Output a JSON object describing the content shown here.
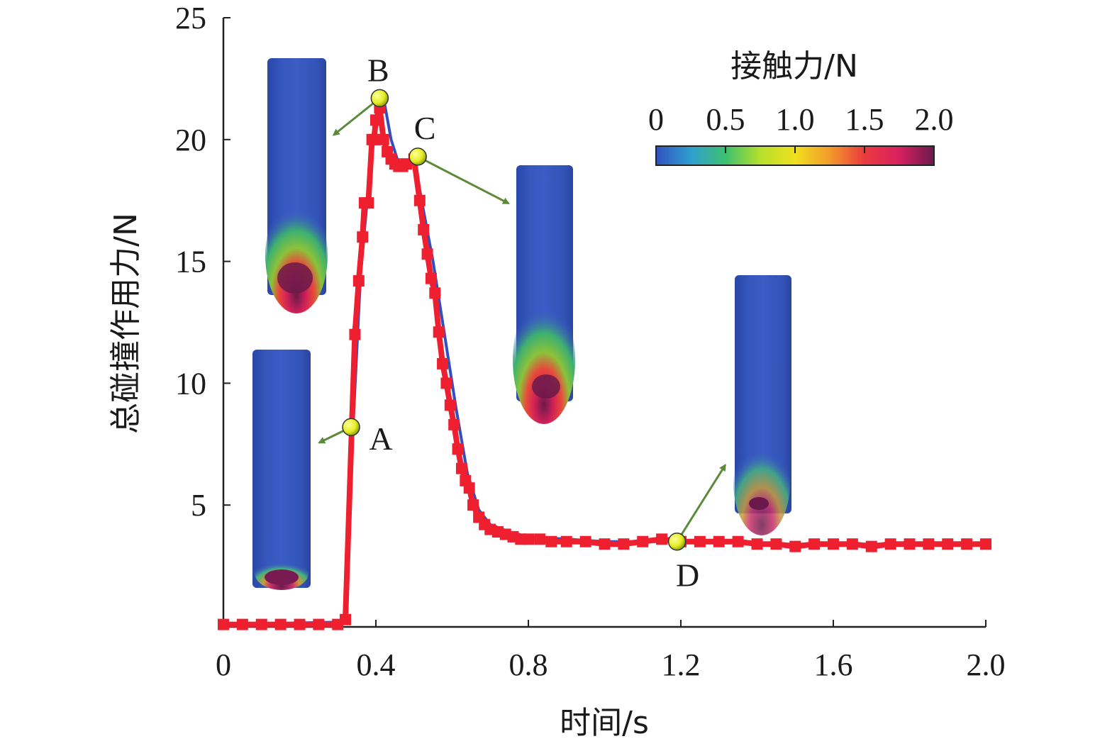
{
  "chart_data": {
    "type": "line",
    "xlabel": "时间/s",
    "ylabel": "总碰撞作用力/N",
    "xlim": [
      0,
      2.0
    ],
    "ylim": [
      0,
      25
    ],
    "xticks": [
      "0",
      "0.4",
      "0.8",
      "1.2",
      "1.6",
      "2.0"
    ],
    "yticks": [
      "5",
      "10",
      "15",
      "20",
      "25"
    ],
    "grid": false,
    "series": [
      {
        "color": "#3050c0",
        "style": "line",
        "x": [
          0,
          0.32,
          0.34,
          0.36,
          0.38,
          0.4,
          0.42,
          0.44,
          0.46,
          0.48,
          0.5,
          0.52,
          0.55,
          0.58,
          0.61,
          0.64,
          0.67,
          0.7,
          0.75,
          0.8,
          0.9,
          1.0,
          1.1,
          1.2,
          1.3,
          1.4,
          1.5,
          1.6,
          1.7,
          1.8,
          1.9,
          2.0
        ],
        "y": [
          0.1,
          0.2,
          8.2,
          14.5,
          18.0,
          20.8,
          21.7,
          20.0,
          19.0,
          19.0,
          19.3,
          17.5,
          15.0,
          12.0,
          9.0,
          6.3,
          4.8,
          4.2,
          3.9,
          3.7,
          3.6,
          3.5,
          3.5,
          3.5,
          3.5,
          3.4,
          3.4,
          3.4,
          3.4,
          3.4,
          3.4,
          3.4
        ]
      },
      {
        "color": "#ee2030",
        "style": "square-markers",
        "x": [
          0,
          0.05,
          0.1,
          0.15,
          0.2,
          0.25,
          0.3,
          0.32,
          0.345,
          0.355,
          0.365,
          0.37,
          0.38,
          0.39,
          0.395,
          0.4,
          0.41,
          0.42,
          0.43,
          0.44,
          0.45,
          0.46,
          0.47,
          0.48,
          0.5,
          0.515,
          0.525,
          0.535,
          0.545,
          0.555,
          0.565,
          0.575,
          0.585,
          0.595,
          0.605,
          0.615,
          0.625,
          0.635,
          0.645,
          0.655,
          0.67,
          0.685,
          0.7,
          0.72,
          0.74,
          0.76,
          0.78,
          0.8,
          0.83,
          0.86,
          0.9,
          0.95,
          1.0,
          1.05,
          1.1,
          1.15,
          1.2,
          1.25,
          1.3,
          1.35,
          1.4,
          1.45,
          1.5,
          1.55,
          1.6,
          1.65,
          1.7,
          1.75,
          1.8,
          1.85,
          1.9,
          1.95,
          2.0
        ],
        "y": [
          0.1,
          0.1,
          0.1,
          0.1,
          0.1,
          0.1,
          0.1,
          0.3,
          12.0,
          14.2,
          16.0,
          17.4,
          17.4,
          20.0,
          20.0,
          20.8,
          21.3,
          20.0,
          19.5,
          19.2,
          19.0,
          18.9,
          18.9,
          19.0,
          19.2,
          17.5,
          16.3,
          15.3,
          14.3,
          13.7,
          12.1,
          10.8,
          10.0,
          9.1,
          8.3,
          7.3,
          6.5,
          6.0,
          5.7,
          5.0,
          4.5,
          4.2,
          4.0,
          3.9,
          3.8,
          3.7,
          3.6,
          3.6,
          3.6,
          3.5,
          3.5,
          3.5,
          3.4,
          3.4,
          3.5,
          3.6,
          3.5,
          3.5,
          3.5,
          3.5,
          3.4,
          3.4,
          3.3,
          3.4,
          3.4,
          3.4,
          3.3,
          3.4,
          3.4,
          3.4,
          3.4,
          3.4,
          3.4
        ]
      }
    ],
    "annotations": [
      {
        "label": "A",
        "x": 0.335,
        "y": 8.2
      },
      {
        "label": "B",
        "x": 0.41,
        "y": 21.7
      },
      {
        "label": "C",
        "x": 0.51,
        "y": 19.3
      },
      {
        "label": "D",
        "x": 1.19,
        "y": 3.5
      }
    ],
    "colorbar": {
      "title": "接触力/N",
      "ticks": [
        "0",
        "0.5",
        "1.0",
        "1.5",
        "2.0"
      ],
      "colors": [
        "#3050c0",
        "#2f9fd0",
        "#3cc070",
        "#b6e02c",
        "#f0e020",
        "#f39a2a",
        "#ea3a3e",
        "#d82060",
        "#6a1a4a"
      ]
    }
  }
}
